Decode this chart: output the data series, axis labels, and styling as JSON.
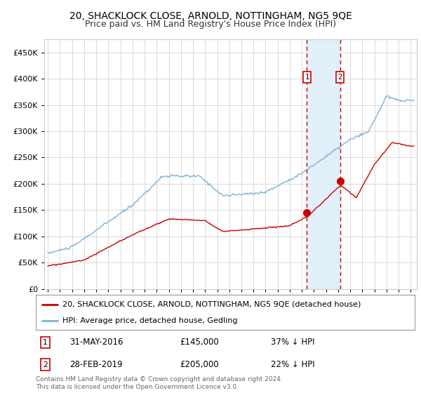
{
  "title": "20, SHACKLOCK CLOSE, ARNOLD, NOTTINGHAM, NG5 9QE",
  "subtitle": "Price paid vs. HM Land Registry's House Price Index (HPI)",
  "legend_line1": "20, SHACKLOCK CLOSE, ARNOLD, NOTTINGHAM, NG5 9QE (detached house)",
  "legend_line2": "HPI: Average price, detached house, Gedling",
  "sale1_date": "31-MAY-2016",
  "sale1_price": 145000,
  "sale1_price_str": "£145,000",
  "sale1_hpi_str": "37% ↓ HPI",
  "sale1_year": 2016.42,
  "sale2_date": "28-FEB-2019",
  "sale2_price": 205000,
  "sale2_price_str": "£205,000",
  "sale2_hpi_str": "22% ↓ HPI",
  "sale2_year": 2019.16,
  "ylim": [
    0,
    475000
  ],
  "yticks": [
    0,
    50000,
    100000,
    150000,
    200000,
    250000,
    300000,
    350000,
    400000,
    450000
  ],
  "ytick_labels": [
    "£0",
    "£50K",
    "£100K",
    "£150K",
    "£200K",
    "£250K",
    "£300K",
    "£350K",
    "£400K",
    "£450K"
  ],
  "xlim_start": 1994.7,
  "xlim_end": 2025.5,
  "red_color": "#cc0000",
  "blue_color": "#7fb3d3",
  "vline_color": "#cc0000",
  "shade_color": "#ddeef8",
  "background_color": "#ffffff",
  "grid_color": "#cccccc",
  "footer_text": "Contains HM Land Registry data © Crown copyright and database right 2024.\nThis data is licensed under the Open Government Licence v3.0."
}
